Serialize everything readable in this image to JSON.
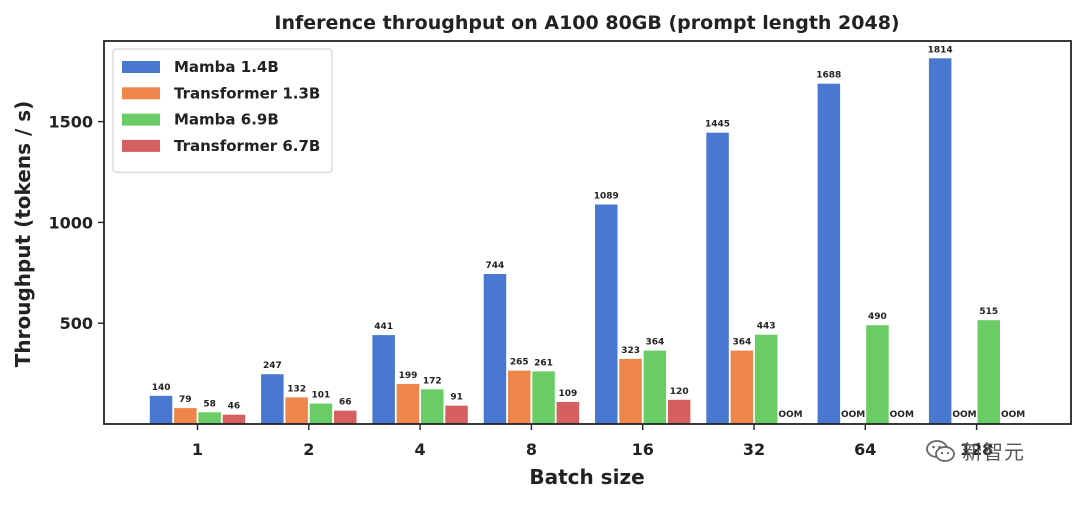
{
  "chart_data": {
    "type": "bar",
    "title": "Inference throughput on A100 80GB (prompt length 2048)",
    "xlabel": "Batch size",
    "ylabel": "Throughput (tokens / s)",
    "categories": [
      "1",
      "2",
      "4",
      "8",
      "16",
      "32",
      "64",
      "128"
    ],
    "ylim": [
      0,
      1900
    ],
    "yticks": [
      500,
      1000,
      1500
    ],
    "legend_position": "top-left",
    "grid": false,
    "missing_label": "OOM",
    "series": [
      {
        "name": "Mamba 1.4B",
        "color": "#4878d0",
        "values": [
          140,
          247,
          441,
          744,
          1089,
          1445,
          1688,
          1814
        ]
      },
      {
        "name": "Transformer 1.3B",
        "color": "#ee854a",
        "values": [
          79,
          132,
          199,
          265,
          323,
          364,
          null,
          null
        ]
      },
      {
        "name": "Mamba 6.9B",
        "color": "#6acc64",
        "values": [
          58,
          101,
          172,
          261,
          364,
          443,
          490,
          515
        ]
      },
      {
        "name": "Transformer 6.7B",
        "color": "#d65f5f",
        "values": [
          46,
          66,
          91,
          109,
          120,
          null,
          null,
          null
        ]
      }
    ]
  },
  "watermark": {
    "icon": "wechat-icon",
    "text": "新智元"
  }
}
